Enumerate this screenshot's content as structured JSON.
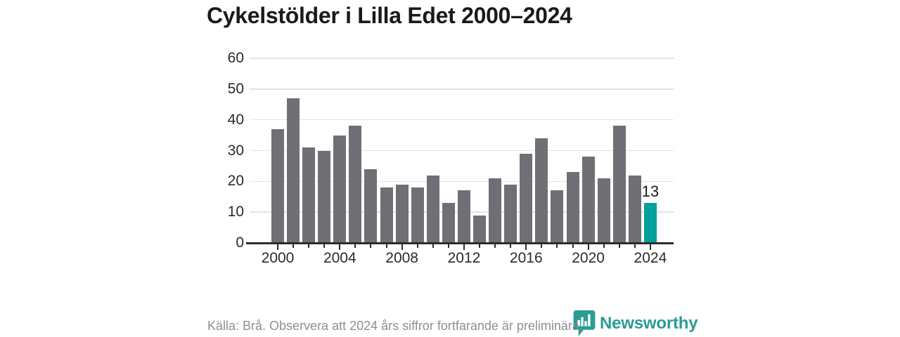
{
  "title": "Cykelstölder i Lilla Edet 2000–2024",
  "footer": {
    "source_note": "Källa: Brå. Observera att 2024 års siffror fortfarande är preliminära."
  },
  "branding": {
    "name": "Newsworthy",
    "icon": "newsworthy-bar-chart-bubble-icon",
    "color": "#2a9c95"
  },
  "chart_data": {
    "type": "bar",
    "title": "Cykelstölder i Lilla Edet 2000–2024",
    "categories": [
      "2000",
      "2001",
      "2002",
      "2003",
      "2004",
      "2005",
      "2006",
      "2007",
      "2008",
      "2009",
      "2010",
      "2011",
      "2012",
      "2013",
      "2014",
      "2015",
      "2016",
      "2017",
      "2018",
      "2019",
      "2020",
      "2021",
      "2022",
      "2023",
      "2024"
    ],
    "values": [
      37,
      47,
      31,
      30,
      35,
      38,
      24,
      18,
      19,
      18,
      22,
      13,
      17,
      9,
      21,
      19,
      29,
      34,
      17,
      23,
      28,
      21,
      38,
      22,
      13
    ],
    "xlabel": "",
    "ylabel": "",
    "ylim": [
      0,
      60
    ],
    "yticks": [
      0,
      10,
      20,
      30,
      40,
      50,
      60
    ],
    "xtick_labels": [
      "2000",
      "2004",
      "2008",
      "2012",
      "2016",
      "2020",
      "2024"
    ],
    "xtick_interval": 4,
    "grid": "horizontal",
    "legend": "none",
    "bar_color": "#716e76",
    "highlight_index": 24,
    "highlight_color": "#00a19a",
    "highlight_label": "13",
    "axis_color": "#2d2d2d",
    "gridline_color": "#e3e3e3"
  }
}
